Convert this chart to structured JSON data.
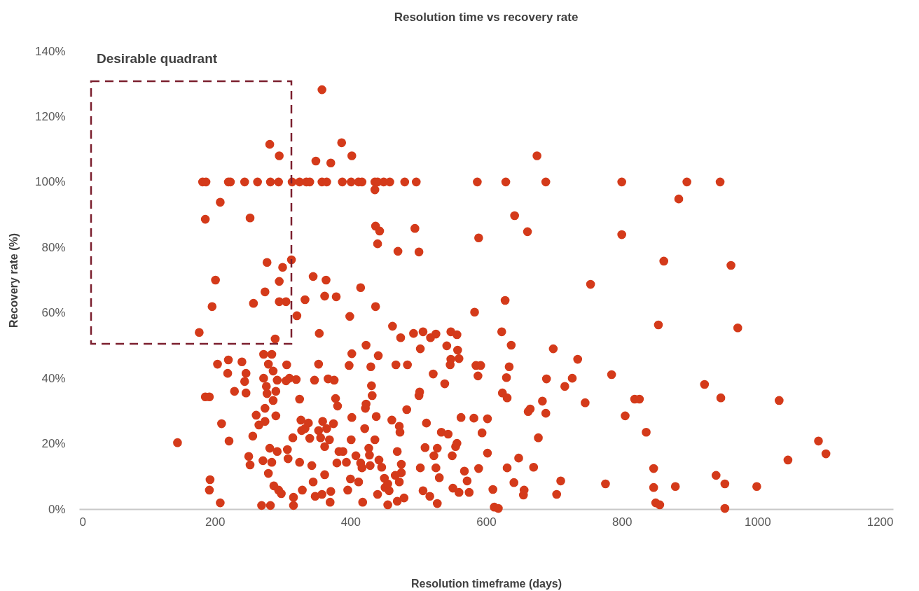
{
  "chart_data": {
    "type": "scatter",
    "title": "Resolution time vs recovery rate",
    "xlabel": "Resolution timeframe (days)",
    "ylabel": "Recovery rate (%)",
    "xlim": [
      0,
      1200
    ],
    "xticks": [
      0,
      200,
      400,
      600,
      800,
      1000,
      1200
    ],
    "ylim": [
      0,
      140
    ],
    "yticks": [
      {
        "value": 0,
        "label": "0%"
      },
      {
        "value": 20,
        "label": "20%"
      },
      {
        "value": 40,
        "label": "40%"
      },
      {
        "value": 60,
        "label": "60%"
      },
      {
        "value": 80,
        "label": "80%"
      },
      {
        "value": 100,
        "label": "100%"
      },
      {
        "value": 120,
        "label": "120%"
      },
      {
        "value": 140,
        "label": "140%"
      }
    ],
    "grid": false,
    "marker": "circle",
    "annotations": [
      "Desirable quadrant"
    ],
    "series": [
      {
        "color": "#d43a1a",
        "x": [
          358,
          281,
          295,
          387,
          402,
          349,
          371,
          675,
          182,
          187,
          220,
          223,
          244,
          263,
          282,
          294,
          314,
          325,
          335,
          340,
          358,
          365,
          388,
          401,
          412,
          417,
          436,
          440,
          449,
          458,
          480,
          497,
          587,
          629,
          688,
          800,
          896,
          945,
          208,
          186,
          252,
          436,
          884,
          642,
          437,
          443,
          440,
          495,
          470,
          501,
          589,
          661,
          800,
          862,
          961,
          313,
          277,
          300,
          754,
          201,
          295,
          345,
          364,
          415,
          257,
          274,
          196,
          305,
          295,
          333,
          379,
          362,
          437,
          628,
          177,
          321,
          399,
          354,
          583,
          289,
          462,
          493,
          507,
          526,
          548,
          557,
          623,
          854,
          971,
          518,
          474,
          145,
          186,
          192,
          204,
          220,
          219,
          210,
          221,
          193,
          192,
          208,
          229,
          240,
          244,
          246,
          246,
          250,
          256,
          252,
          261,
          265,
          272,
          272,
          274,
          276,
          277,
          274,
          271,
          279,
          269,
          282,
          284,
          279,
          286,
          286,
          290,
          281,
          284,
          287,
          294,
          298,
          292,
          290,
          292,
          306,
          305,
          310,
          307,
          308,
          315,
          316,
          316,
          320,
          325,
          327,
          325,
          328,
          329,
          333,
          338,
          340,
          343,
          345,
          347,
          348,
          353,
          353,
          356,
          359,
          362,
          365,
          362,
          358,
          367,
          376,
          369,
          375,
          378,
          381,
          383,
          380,
          370,
          371,
          389,
          394,
          396,
          400,
          401,
          402,
          398,
          402,
          408,
          412,
          415,
          418,
          417,
          421,
          422,
          423,
          423,
          427,
          428,
          429,
          431,
          432,
          430,
          436,
          438,
          440,
          441,
          442,
          446,
          450,
          451,
          457,
          455,
          455,
          461,
          467,
          469,
          472,
          473,
          475,
          475,
          472,
          469,
          479,
          466,
          483,
          484,
          501,
          502,
          503,
          503,
          507,
          512,
          510,
          517,
          522,
          523,
          526,
          528,
          528,
          531,
          534,
          539,
          542,
          544,
          548,
          547,
          550,
          551,
          555,
          557,
          560,
          558,
          560,
          563,
          568,
          572,
          575,
          582,
          585,
          588,
          589,
          592,
          594,
          602,
          602,
          610,
          612,
          618,
          624,
          630,
          631,
          634,
          637,
          631,
          641,
          648,
          655,
          656,
          662,
          665,
          670,
          677,
          683,
          688,
          689,
          699,
          710,
          704,
          716,
          727,
          735,
          746,
          776,
          785,
          805,
          819,
          826,
          836,
          847,
          847,
          850,
          856,
          879,
          922,
          939,
          946,
          952,
          952,
          999,
          1032,
          1045,
          1090,
          1101
        ],
        "values": [
          128.2,
          111.5,
          108,
          112,
          108,
          106.4,
          105.8,
          108,
          100,
          100,
          100,
          100,
          100,
          100,
          100,
          100,
          100,
          100,
          100,
          100,
          100,
          100,
          100,
          100,
          100,
          100,
          100,
          100,
          100,
          100,
          100,
          100,
          100,
          100,
          100,
          100,
          100,
          100,
          93.8,
          88.6,
          89,
          97.6,
          94.8,
          89.7,
          86.5,
          85,
          81.1,
          85.8,
          78.8,
          78.6,
          82.9,
          84.8,
          83.9,
          75.8,
          74.5,
          76.2,
          75.4,
          73.9,
          68.7,
          70,
          69.6,
          71.1,
          70,
          67.7,
          62.9,
          66.4,
          61.9,
          63.4,
          63.4,
          64,
          64.9,
          65.1,
          61.9,
          63.8,
          54,
          59.1,
          58.9,
          53.7,
          60.2,
          52,
          55.9,
          53.7,
          54.2,
          53.5,
          54.2,
          53.3,
          54.2,
          56.3,
          55.4,
          52.4,
          52.4,
          20.3,
          34.3,
          34.3,
          44.3,
          45.6,
          41.5,
          26.1,
          20.8,
          9,
          5.8,
          1.9,
          36,
          45,
          39,
          41.5,
          35.5,
          16.1,
          22.3,
          13.5,
          28.7,
          25.7,
          47.3,
          40,
          30.8,
          37.5,
          35.3,
          26.8,
          14.8,
          10.9,
          1.1,
          1.1,
          47.3,
          44.3,
          42.2,
          33.2,
          36,
          18.6,
          14.3,
          7.1,
          5.8,
          4.7,
          39.4,
          28.5,
          17.6,
          44.1,
          39.2,
          40,
          18.2,
          15.4,
          21.8,
          3.6,
          1.1,
          39.6,
          33.6,
          27.2,
          14.3,
          24,
          5.8,
          24.6,
          26.3,
          21.6,
          13.3,
          8.3,
          39.4,
          3.9,
          44.3,
          24,
          21.8,
          26.8,
          19.1,
          24.6,
          10.5,
          4.5,
          39.8,
          39.4,
          21.2,
          26.1,
          33.8,
          31.5,
          17.6,
          14.1,
          2.1,
          5.4,
          17.6,
          14.3,
          5.8,
          9.2,
          21.2,
          28,
          43.9,
          47.5,
          16.3,
          8.3,
          14.1,
          2.1,
          12.6,
          24.6,
          30.8,
          32.1,
          50.1,
          18.6,
          16.5,
          13.3,
          37.7,
          34.7,
          43.5,
          21.2,
          28.3,
          4.5,
          46.9,
          15,
          12.8,
          9.4,
          6.6,
          5.6,
          7.7,
          1.3,
          27.2,
          44.1,
          17.6,
          25.3,
          23.5,
          13.7,
          11.1,
          8.3,
          2.4,
          3.4,
          10.3,
          30.4,
          44.1,
          34.7,
          35.8,
          49,
          12.6,
          5.6,
          26.3,
          18.8,
          3.9,
          41.3,
          16.3,
          12.6,
          1.7,
          18.6,
          9.6,
          23.5,
          38.3,
          49.9,
          22.9,
          45.8,
          44.1,
          16.3,
          6.4,
          19.1,
          20.1,
          5.1,
          48.6,
          46,
          28,
          11.6,
          8.6,
          5.1,
          27.8,
          43.9,
          40.7,
          12.4,
          43.9,
          23.3,
          27.6,
          17.1,
          6,
          0.6,
          0.2,
          35.5,
          40.2,
          34,
          43.5,
          50.1,
          12.6,
          8.1,
          15.6,
          4.3,
          5.8,
          29.8,
          30.6,
          12.8,
          21.8,
          33,
          29.3,
          39.8,
          49,
          8.6,
          4.5,
          37.5,
          40,
          45.8,
          32.5,
          7.7,
          41.1,
          28.5,
          33.6,
          33.6,
          23.5,
          12.4,
          6.6,
          1.9,
          1.3,
          6.9,
          38.1,
          10.3,
          34,
          7.7,
          0.2,
          6.9,
          33.2,
          15,
          20.8,
          16.9
        ]
      }
    ]
  }
}
